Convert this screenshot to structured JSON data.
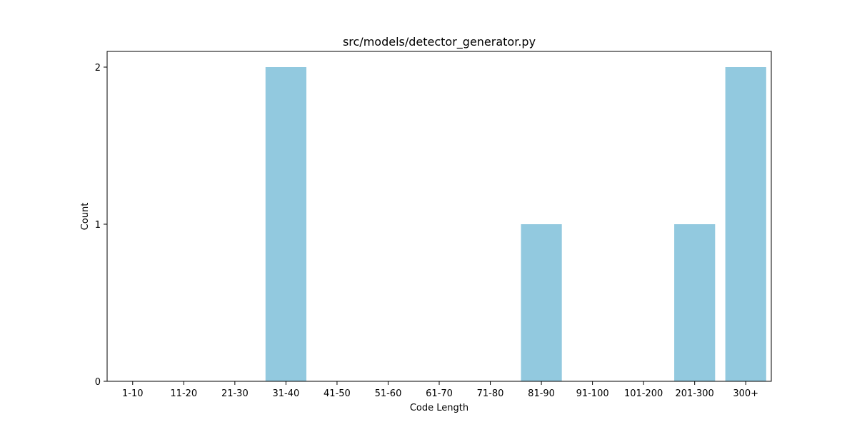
{
  "chart_data": {
    "type": "bar",
    "title": "src/models/detector_generator.py",
    "xlabel": "Code Length",
    "ylabel": "Count",
    "categories": [
      "1-10",
      "11-20",
      "21-30",
      "31-40",
      "41-50",
      "51-60",
      "61-70",
      "71-80",
      "81-90",
      "91-100",
      "101-200",
      "201-300",
      "300+"
    ],
    "values": [
      0,
      0,
      0,
      2,
      0,
      0,
      0,
      0,
      1,
      0,
      0,
      1,
      2
    ],
    "ylim": [
      0,
      2.1
    ],
    "yticks": [
      0,
      1,
      2
    ],
    "bar_color": "#92c9df",
    "grid": false,
    "legend": false
  }
}
